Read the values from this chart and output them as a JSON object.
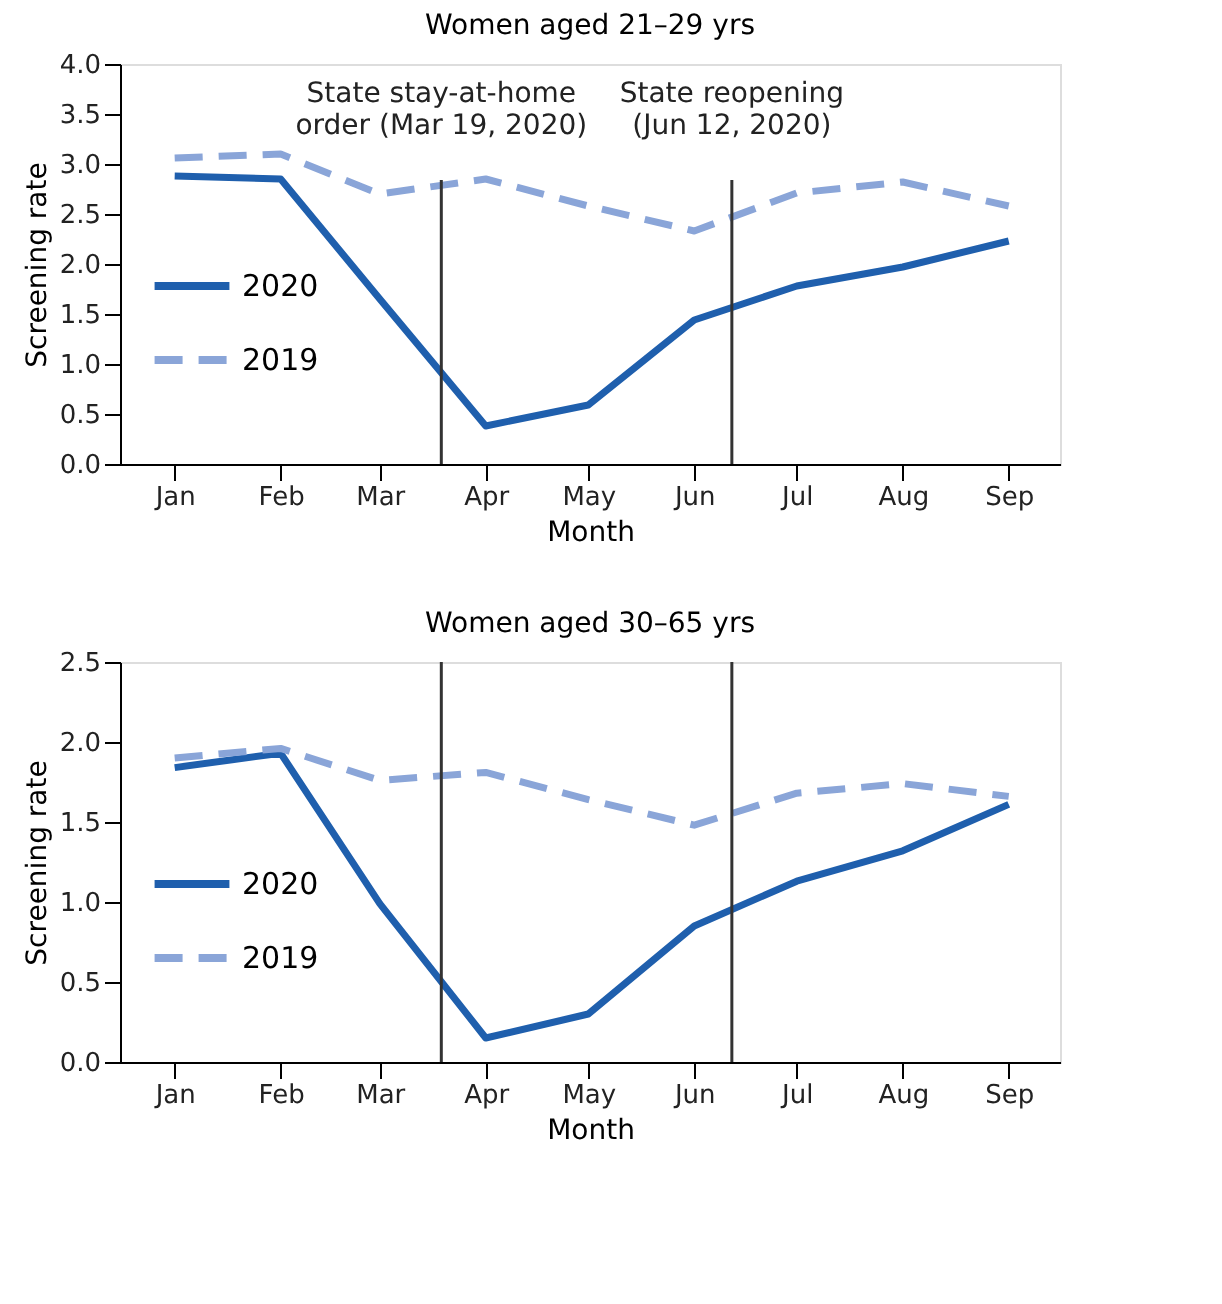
{
  "chart_data": [
    {
      "type": "line",
      "title": "Women aged 21–29 yrs",
      "xlabel": "Month",
      "ylabel": "Screening rate",
      "x": [
        "2020-01-01",
        "2020-02-01",
        "2020-03-01",
        "2020-04-01",
        "2020-05-01",
        "2020-06-01",
        "2020-07-01",
        "2020-08-01",
        "2020-09-01"
      ],
      "xlim": [
        "2019-12-16",
        "2020-09-16"
      ],
      "xticks": [
        {
          "value": "2020-01-01",
          "label": "Jan"
        },
        {
          "value": "2020-02-01",
          "label": "Feb"
        },
        {
          "value": "2020-03-01",
          "label": "Mar"
        },
        {
          "value": "2020-04-01",
          "label": "Apr"
        },
        {
          "value": "2020-05-01",
          "label": "May"
        },
        {
          "value": "2020-06-01",
          "label": "Jun"
        },
        {
          "value": "2020-07-01",
          "label": "Jul"
        },
        {
          "value": "2020-08-01",
          "label": "Aug"
        },
        {
          "value": "2020-09-01",
          "label": "Sep"
        }
      ],
      "ylim": [
        0,
        4
      ],
      "yticks": [
        {
          "value": 0,
          "label": "0.0"
        },
        {
          "value": 0.5,
          "label": "0.5"
        },
        {
          "value": 1,
          "label": "1.0"
        },
        {
          "value": 1.5,
          "label": "1.5"
        },
        {
          "value": 2,
          "label": "2.0"
        },
        {
          "value": 2.5,
          "label": "2.5"
        },
        {
          "value": 3,
          "label": "3.0"
        },
        {
          "value": 3.5,
          "label": "3.5"
        },
        {
          "value": 4,
          "label": "4.0"
        }
      ],
      "series": [
        {
          "name": "2020",
          "color": "#1f5fad",
          "line_style": "solid",
          "values": [
            2.88,
            2.85,
            1.65,
            0.38,
            0.59,
            1.44,
            1.78,
            1.97,
            2.23
          ]
        },
        {
          "name": "2019",
          "color": "#8aa5d8",
          "line_style": "dashed",
          "values": [
            3.06,
            3.1,
            2.7,
            2.85,
            2.58,
            2.33,
            2.71,
            2.82,
            2.58
          ]
        }
      ],
      "ref_lines": [
        {
          "axis": "x",
          "value": "2020-03-19",
          "label": "State stay-at-home order (Mar 19, 2020)"
        },
        {
          "axis": "x",
          "value": "2020-06-12",
          "label": "State reopening (Jun 12, 2020)"
        }
      ],
      "legend": "left",
      "grid": false,
      "marker": "none"
    },
    {
      "type": "line",
      "title": "Women aged 30–65 yrs",
      "xlabel": "Month",
      "ylabel": "Screening rate",
      "x": [
        "2020-01-01",
        "2020-02-01",
        "2020-03-01",
        "2020-04-01",
        "2020-05-01",
        "2020-06-01",
        "2020-07-01",
        "2020-08-01",
        "2020-09-01"
      ],
      "xlim": [
        "2019-12-16",
        "2020-09-16"
      ],
      "xticks": [
        {
          "value": "2020-01-01",
          "label": "Jan"
        },
        {
          "value": "2020-02-01",
          "label": "Feb"
        },
        {
          "value": "2020-03-01",
          "label": "Mar"
        },
        {
          "value": "2020-04-01",
          "label": "Apr"
        },
        {
          "value": "2020-05-01",
          "label": "May"
        },
        {
          "value": "2020-06-01",
          "label": "Jun"
        },
        {
          "value": "2020-07-01",
          "label": "Jul"
        },
        {
          "value": "2020-08-01",
          "label": "Aug"
        },
        {
          "value": "2020-09-01",
          "label": "Sep"
        }
      ],
      "ylim": [
        0,
        2.5
      ],
      "yticks": [
        {
          "value": 0,
          "label": "0.0"
        },
        {
          "value": 0.5,
          "label": "0.5"
        },
        {
          "value": 1,
          "label": "1.0"
        },
        {
          "value": 1.5,
          "label": "1.5"
        },
        {
          "value": 2,
          "label": "2.0"
        },
        {
          "value": 2.5,
          "label": "2.5"
        }
      ],
      "series": [
        {
          "name": "2020",
          "color": "#1f5fad",
          "line_style": "solid",
          "values": [
            1.84,
            1.93,
            0.99,
            0.15,
            0.3,
            0.85,
            1.13,
            1.32,
            1.61
          ]
        },
        {
          "name": "2019",
          "color": "#8aa5d8",
          "line_style": "dashed",
          "values": [
            1.9,
            1.96,
            1.76,
            1.81,
            1.64,
            1.48,
            1.68,
            1.74,
            1.66
          ]
        }
      ],
      "ref_lines": [
        {
          "axis": "x",
          "value": "2020-03-19",
          "label": null
        },
        {
          "axis": "x",
          "value": "2020-06-12",
          "label": null
        }
      ],
      "legend": "left",
      "grid": false,
      "marker": "none"
    }
  ]
}
